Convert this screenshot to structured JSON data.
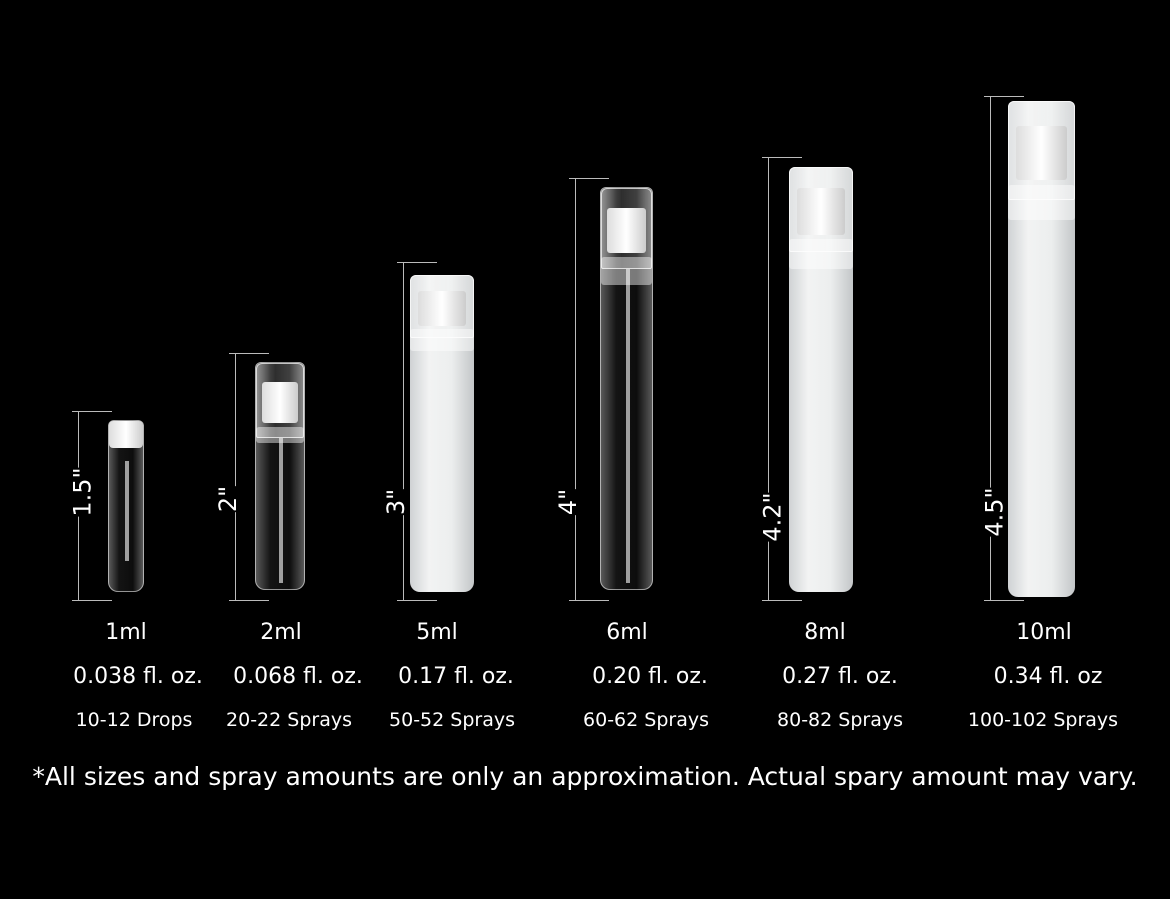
{
  "products": [
    {
      "height": "1.5\"",
      "volume": "1ml",
      "fl_oz": "0.038 fl. oz.",
      "amount": "10-12 Drops",
      "style": "clear"
    },
    {
      "height": "2\"",
      "volume": "2ml",
      "fl_oz": "0.068 fl. oz.",
      "amount": "20-22 Sprays",
      "style": "clear"
    },
    {
      "height": "3\"",
      "volume": "5ml",
      "fl_oz": "0.17 fl. oz.",
      "amount": "50-52 Sprays",
      "style": "frosted"
    },
    {
      "height": "4\"",
      "volume": "6ml",
      "fl_oz": "0.20 fl. oz.",
      "amount": "60-62 Sprays",
      "style": "clear"
    },
    {
      "height": "4.2\"",
      "volume": "8ml",
      "fl_oz": "0.27 fl. oz.",
      "amount": "80-82 Sprays",
      "style": "frosted"
    },
    {
      "height": "4.5\"",
      "volume": "10ml",
      "fl_oz": "0.34 fl. oz",
      "amount": "100-102 Sprays",
      "style": "frosted"
    }
  ],
  "footnote": "*All sizes and spray amounts are only an approximation. Actual spary amount may vary.",
  "colors": {
    "background": "#000000",
    "text": "#ffffff",
    "dimension_line": "#bbbbbb"
  }
}
